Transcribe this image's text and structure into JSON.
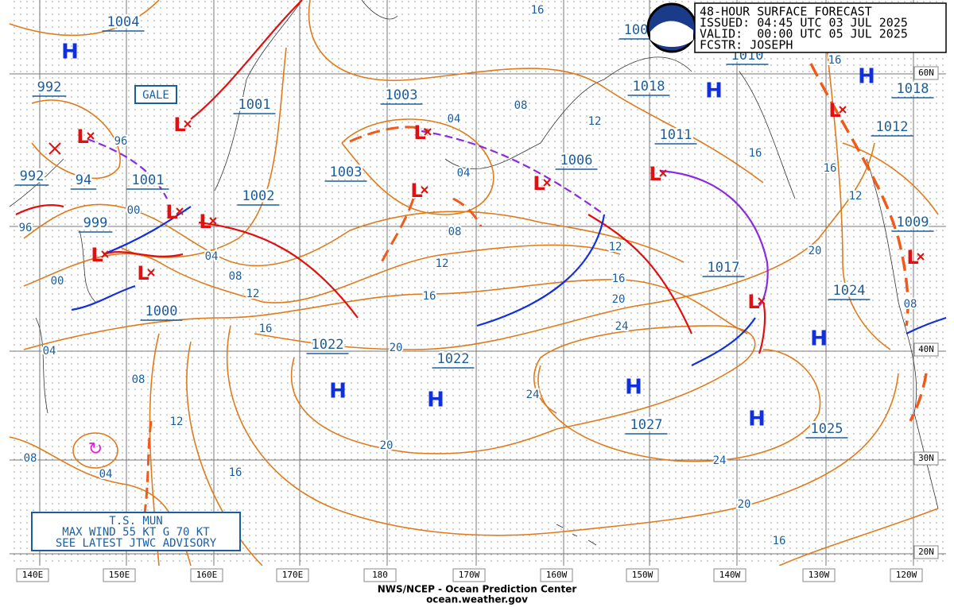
{
  "header": {
    "lines": [
      "48-HOUR SURFACE FORECAST",
      "ISSUED: 04:45 UTC 03 JUL 2025",
      "VALID:  00:00 UTC 05 JUL 2025",
      "FCSTR: JOSEPH"
    ]
  },
  "pressures": [
    "1004",
    "992",
    "1001",
    "1003",
    "992",
    "94",
    "1001",
    "1003",
    "1002",
    "999",
    "1000",
    "1022",
    "1022",
    "1006",
    "1018",
    "1011",
    "1017",
    "1024",
    "1027",
    "1025",
    "1018",
    "1012",
    "1009",
    "100",
    "1010"
  ],
  "isobar_labels": [
    "16",
    "08",
    "12",
    "04",
    "04",
    "96",
    "00",
    "96",
    "04",
    "08",
    "12",
    "16",
    "00",
    "04",
    "08",
    "12",
    "16",
    "20",
    "12",
    "16",
    "20",
    "24",
    "24",
    "20",
    "16",
    "16",
    "16",
    "12",
    "20",
    "08",
    "24",
    "20",
    "16",
    "16",
    "12",
    "08",
    "08",
    "04"
  ],
  "highs": [
    "H",
    "H",
    "H",
    "H",
    "H",
    "H",
    "H",
    "H"
  ],
  "lows": [
    "L",
    "L",
    "L",
    "L",
    "L",
    "L",
    "L",
    "L",
    "L",
    "L",
    "L",
    "L",
    "L"
  ],
  "gale": "GALE",
  "storm_box": [
    "T.S. MUN",
    "MAX WIND 55 KT G 70 KT",
    "SEE LATEST JTWC ADVISORY"
  ],
  "longitudes": [
    "140E",
    "150E",
    "160E",
    "170E",
    "180",
    "170W",
    "160W",
    "150W",
    "140W",
    "130W",
    "120W"
  ],
  "latitudes": [
    "60N",
    "40N",
    "30N",
    "20N"
  ],
  "footer": [
    "NWS/NCEP - Ocean Prediction Center",
    "ocean.weather.gov"
  ]
}
